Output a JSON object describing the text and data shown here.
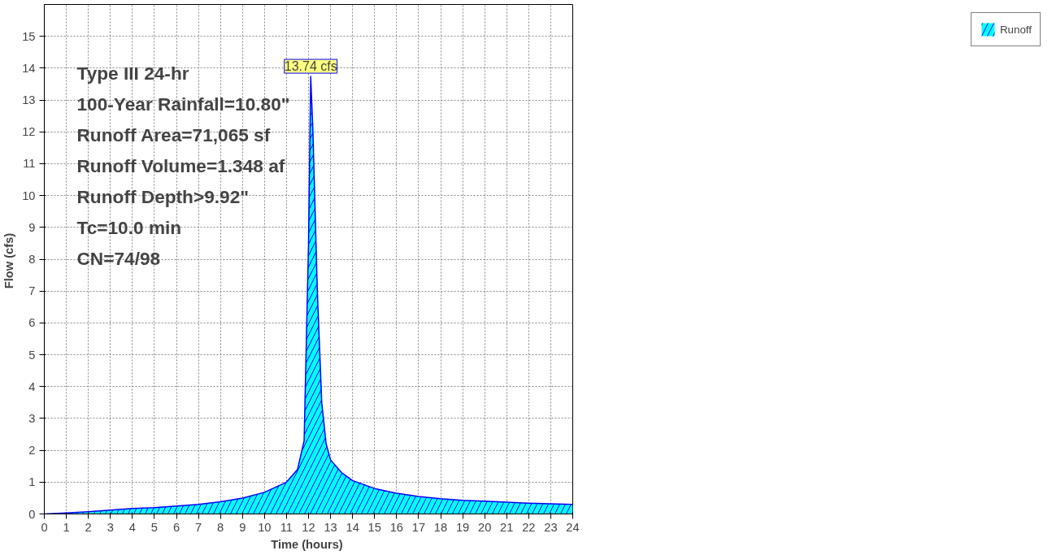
{
  "chart_data": {
    "type": "area",
    "xlabel": "Time  (hours)",
    "ylabel": "Flow  (cfs)",
    "xlim": [
      0,
      24
    ],
    "ylim": [
      0,
      16
    ],
    "xticks": [
      0,
      1,
      2,
      3,
      4,
      5,
      6,
      7,
      8,
      9,
      10,
      11,
      12,
      13,
      14,
      15,
      16,
      17,
      18,
      19,
      20,
      21,
      22,
      23,
      24
    ],
    "yticks": [
      0,
      1,
      2,
      3,
      4,
      5,
      6,
      7,
      8,
      9,
      10,
      11,
      12,
      13,
      14,
      15
    ],
    "grid": true,
    "legend": "top right",
    "line_style": "solid",
    "marker": "none",
    "series": [
      {
        "name": "Runoff",
        "color": "#00ffff",
        "x": [
          0,
          1,
          2,
          3,
          4,
          5,
          6,
          7,
          8,
          9,
          10,
          11,
          11.5,
          11.8,
          12.0,
          12.1,
          12.2,
          12.4,
          12.6,
          12.8,
          13,
          13.5,
          14,
          15,
          16,
          17,
          18,
          19,
          20,
          21,
          22,
          23,
          24
        ],
        "values": [
          0,
          0.03,
          0.07,
          0.12,
          0.17,
          0.2,
          0.25,
          0.3,
          0.38,
          0.5,
          0.68,
          1.0,
          1.4,
          2.3,
          8.5,
          13.74,
          12,
          7,
          3.5,
          2.2,
          1.7,
          1.3,
          1.05,
          0.8,
          0.65,
          0.55,
          0.48,
          0.43,
          0.4,
          0.37,
          0.34,
          0.32,
          0.3
        ]
      }
    ],
    "annotations": [
      {
        "text": "13.74 cfs",
        "x": 12.1,
        "y": 13.74
      },
      "Type III 24-hr",
      "100-Year Rainfall=10.80\"",
      "Runoff Area=71,065 sf",
      "Runoff Volume=1.348 af",
      "Runoff Depth>9.92\"",
      "Tc=10.0 min",
      "CN=74/98"
    ]
  }
}
